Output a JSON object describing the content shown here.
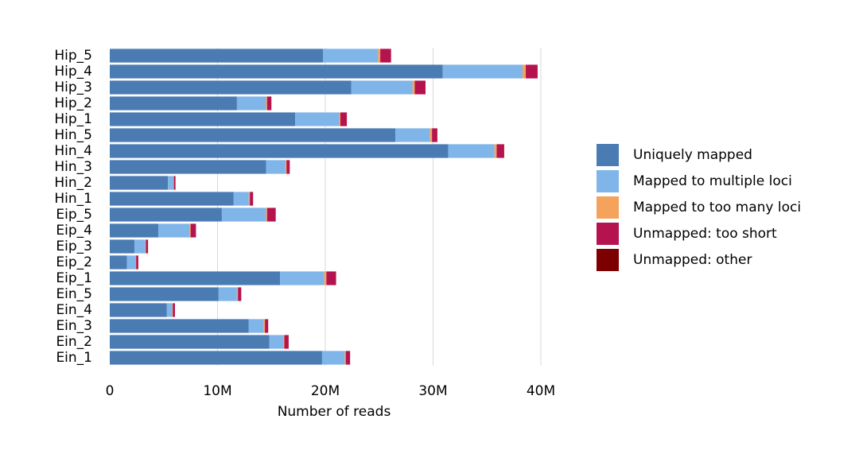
{
  "chart_data": {
    "type": "bar",
    "orientation": "horizontal",
    "stacked": true,
    "xlabel": "Number of reads",
    "ylabel": "",
    "xlim": [
      0,
      40000000
    ],
    "x_ticks": [
      {
        "value": 0,
        "label": "0"
      },
      {
        "value": 10000000,
        "label": "10M"
      },
      {
        "value": 20000000,
        "label": "20M"
      },
      {
        "value": 30000000,
        "label": "30M"
      },
      {
        "value": 40000000,
        "label": "40M"
      }
    ],
    "grid": "vertical",
    "legend_position": "right",
    "categories": [
      "Hip_5",
      "Hip_4",
      "Hip_3",
      "Hip_2",
      "Hip_1",
      "Hin_5",
      "Hin_4",
      "Hin_3",
      "Hin_2",
      "Hin_1",
      "Eip_5",
      "Eip_4",
      "Eip_3",
      "Eip_2",
      "Eip_1",
      "Ein_5",
      "Ein_4",
      "Ein_3",
      "Ein_2",
      "Ein_1"
    ],
    "series": [
      {
        "name": "Uniquely mapped",
        "color": "#4a7cb3",
        "values": [
          19800000,
          30900000,
          22400000,
          11800000,
          17200000,
          26500000,
          31400000,
          14500000,
          5400000,
          11500000,
          10400000,
          4500000,
          2300000,
          1600000,
          15800000,
          10100000,
          5300000,
          12900000,
          14800000,
          19700000
        ]
      },
      {
        "name": "Mapped to multiple loci",
        "color": "#7fb5e9",
        "values": [
          5100000,
          7400000,
          5700000,
          2700000,
          4100000,
          3200000,
          4300000,
          1800000,
          500000,
          1400000,
          4100000,
          2900000,
          1000000,
          800000,
          4100000,
          1700000,
          500000,
          1400000,
          1300000,
          2100000
        ]
      },
      {
        "name": "Mapped to too many loci",
        "color": "#f5a35c",
        "values": [
          200000,
          300000,
          200000,
          100000,
          100000,
          200000,
          200000,
          100000,
          50000,
          100000,
          100000,
          100000,
          50000,
          50000,
          200000,
          100000,
          50000,
          100000,
          100000,
          100000
        ]
      },
      {
        "name": "Unmapped: too short",
        "color": "#b5134d",
        "values": [
          1000000,
          1100000,
          1000000,
          400000,
          600000,
          500000,
          700000,
          300000,
          150000,
          300000,
          800000,
          500000,
          200000,
          200000,
          900000,
          300000,
          200000,
          300000,
          400000,
          400000
        ]
      },
      {
        "name": "Unmapped: other",
        "color": "#7d0000",
        "values": [
          0,
          0,
          0,
          0,
          0,
          0,
          0,
          0,
          0,
          0,
          0,
          0,
          0,
          0,
          0,
          0,
          0,
          0,
          0,
          0
        ]
      }
    ]
  }
}
